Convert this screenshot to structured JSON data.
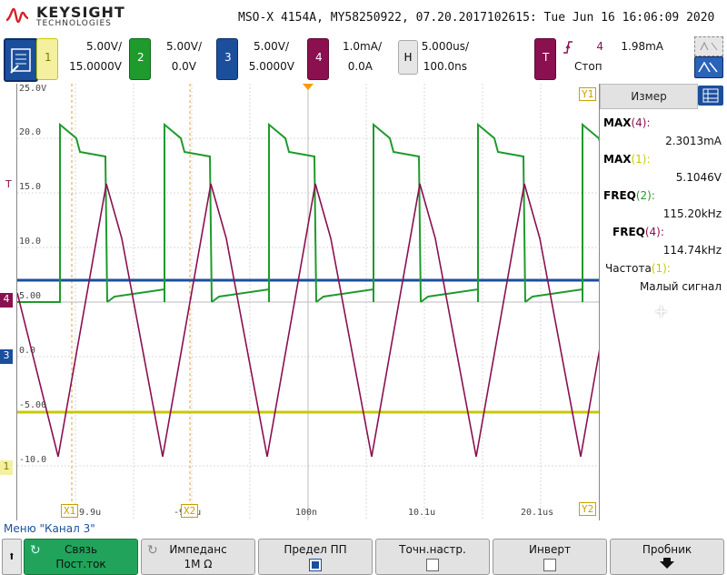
{
  "header": {
    "brand": "KEYSIGHT",
    "brand_sub": "TECHNOLOGIES",
    "title": "MSO-X 4154A, MY58250922, 07.20.2017102615: Tue Jun 16 16:06:09 2020"
  },
  "channels": [
    {
      "id": "1",
      "scale": "5.00V/",
      "offset": "15.0000V",
      "color": "#c8c800"
    },
    {
      "id": "2",
      "scale": "5.00V/",
      "offset": "0.0V",
      "color": "#1f9a2d"
    },
    {
      "id": "3",
      "scale": "5.00V/",
      "offset": "5.0000V",
      "color": "#1b4f9c"
    },
    {
      "id": "4",
      "scale": "1.0mA/",
      "offset": "0.0A",
      "color": "#8b1050"
    }
  ],
  "horizontal": {
    "label": "H",
    "scale": "5.000us/",
    "delay": "100.0ns"
  },
  "trigger": {
    "label": "T",
    "source": "4",
    "level": "1.98mA",
    "status": "Стоп",
    "color": "#8b1050"
  },
  "grid": {
    "y_labels": [
      "25.0V",
      "20.0",
      "15.0",
      "10.0",
      "5.00",
      "0.0",
      "-5.00",
      "-10.0"
    ],
    "x_labels": [
      "-19.9u",
      "-9.9u",
      "100n",
      "10.1u",
      "20.1us"
    ],
    "cursor_labels": [
      "X1",
      "X2",
      "Y1",
      "Y2"
    ],
    "marker_labels": {
      "t": "T",
      "ch4": "4",
      "ch3": "3",
      "ch1": "1"
    }
  },
  "panel": {
    "tab": "Измер",
    "measurements": [
      {
        "name": "MAX",
        "src": "(4):",
        "value": "2.3013mA",
        "src_color": "#8b1050"
      },
      {
        "name": "MAX",
        "src": "(1):",
        "value": "5.1046V",
        "src_color": "#c8c800"
      },
      {
        "name": "FREQ",
        "src": "(2):",
        "value": "115.20kHz",
        "src_color": "#1f9a2d"
      },
      {
        "name": "FREQ",
        "src": "(4):",
        "value": "114.74kHz",
        "src_color": "#8b1050"
      },
      {
        "name": "Частота",
        "src": "(1):",
        "value": "Малый сигнал",
        "src_color": "#c8c800"
      }
    ],
    "add_symbol": "+"
  },
  "bottom": {
    "menu_label": "Меню \"Канал 3\"",
    "softkeys": [
      {
        "l1": "Связь",
        "l2": "Пост.ток"
      },
      {
        "l1": "Импеданс",
        "l2": "1M Ω"
      },
      {
        "l1": "Предел ПП",
        "l2": ""
      },
      {
        "l1": "Точн.настр.",
        "l2": ""
      },
      {
        "l1": "Инверт",
        "l2": ""
      },
      {
        "l1": "Пробник",
        "l2": ""
      }
    ]
  }
}
